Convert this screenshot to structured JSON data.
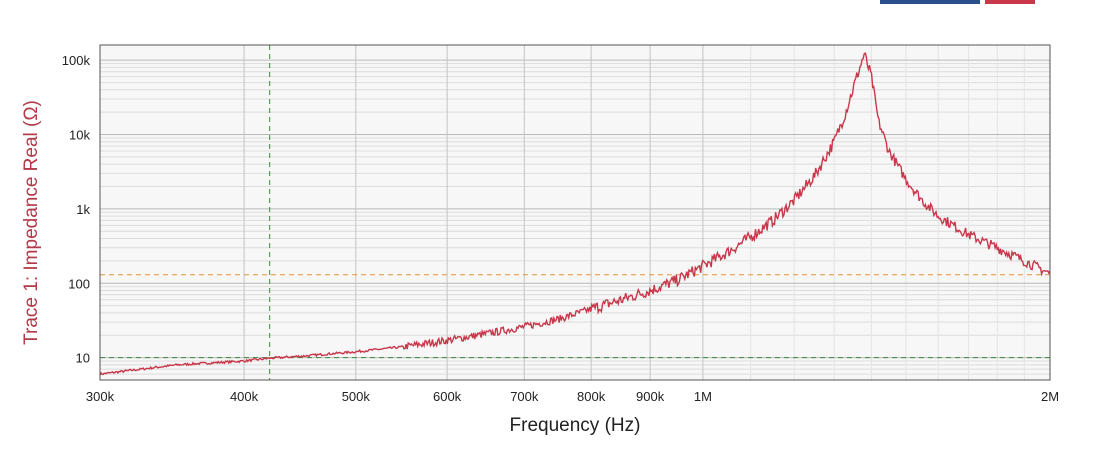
{
  "chart_data": {
    "type": "line",
    "xlabel": "Frequency (Hz)",
    "ylabel": "Trace 1: Impedance Real (Ω)",
    "x_scale": "log",
    "y_scale": "log",
    "xlim": [
      300000,
      2000000
    ],
    "ylim": [
      5,
      160000
    ],
    "x_ticks": [
      300000,
      400000,
      500000,
      600000,
      700000,
      800000,
      900000,
      1000000,
      2000000
    ],
    "x_tick_labels": [
      "300k",
      "400k",
      "500k",
      "600k",
      "700k",
      "800k",
      "900k",
      "1M",
      "2M"
    ],
    "y_ticks": [
      10,
      100,
      1000,
      10000,
      100000
    ],
    "y_tick_labels": [
      "10",
      "100",
      "1k",
      "10k",
      "100k"
    ],
    "grid": true,
    "series": [
      {
        "color": "#c8374a",
        "x": [
          300000,
          350000,
          400000,
          421000,
          450000,
          500000,
          550000,
          600000,
          650000,
          700000,
          750000,
          800000,
          850000,
          900000,
          950000,
          1000000,
          1050000,
          1100000,
          1150000,
          1200000,
          1250000,
          1300000,
          1330000,
          1360000,
          1380000,
          1400000,
          1420000,
          1450000,
          1500000,
          1550000,
          1600000,
          1700000,
          1800000,
          1900000,
          2000000
        ],
        "y": [
          6,
          8,
          9,
          9.8,
          10.5,
          12,
          14,
          17,
          21,
          26,
          33,
          45,
          60,
          80,
          110,
          170,
          260,
          420,
          700,
          1300,
          2800,
          8000,
          20000,
          60000,
          120000,
          60000,
          15000,
          6000,
          2500,
          1300,
          800,
          450,
          300,
          200,
          135
        ]
      }
    ],
    "cursor_lines": {
      "vertical_x": 421000,
      "horizontal_y": [
        10,
        130
      ]
    }
  },
  "colors": {
    "trace": "#c8374a",
    "ylabel": "#b23a48",
    "cursor_green": "#3a8a3a",
    "cursor_orange": "#e8923a",
    "plot_bg": "#f7f7f7",
    "logo_blue": "#2a4f8a",
    "logo_red": "#c8374a"
  }
}
